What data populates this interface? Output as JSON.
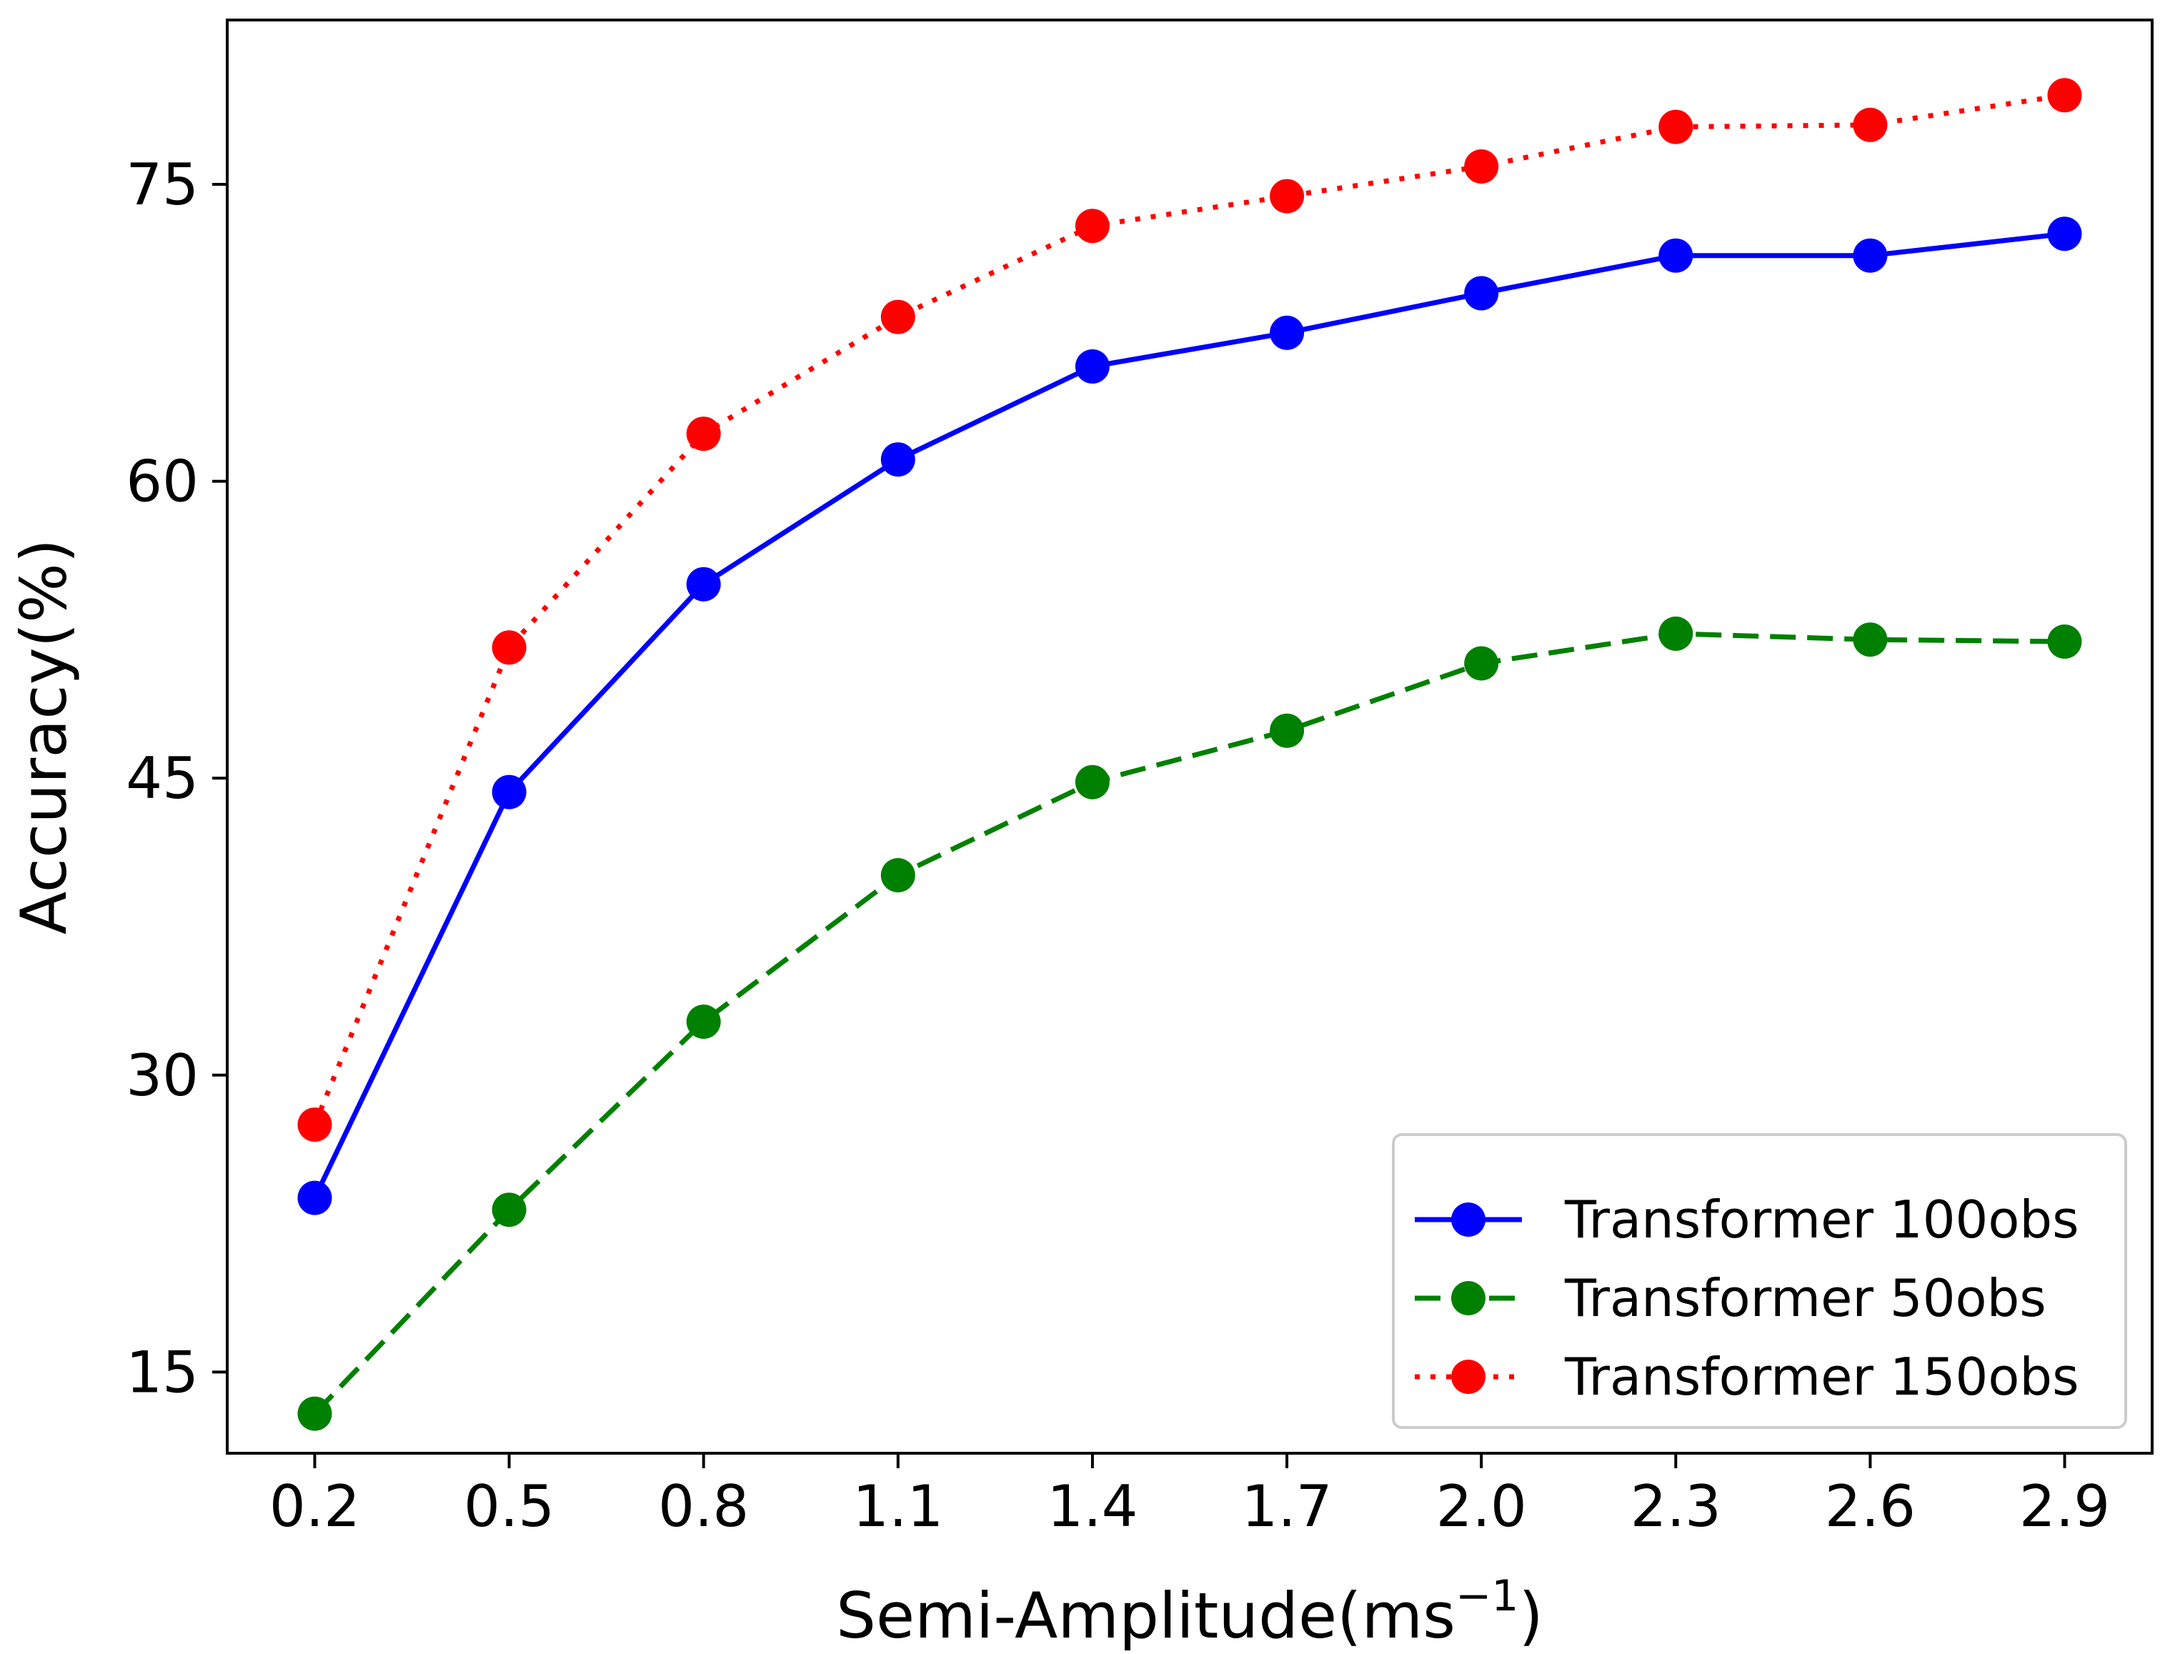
{
  "chart_data": {
    "type": "line",
    "title": "",
    "xlabel": "Semi-Amplitude(ms",
    "xlabel_superscript": "−1",
    "xlabel_suffix": ")",
    "ylabel": "Accuracy(%)",
    "x": [
      0.2,
      0.5,
      0.8,
      1.1,
      1.4,
      1.7,
      2.0,
      2.3,
      2.6,
      2.9
    ],
    "x_tick_labels": [
      "0.2",
      "0.5",
      "0.8",
      "1.1",
      "1.4",
      "1.7",
      "2.0",
      "2.3",
      "2.6",
      "2.9"
    ],
    "y_ticks": [
      15,
      30,
      45,
      60,
      75
    ],
    "y_tick_labels": [
      "15",
      "30",
      "45",
      "60",
      "75"
    ],
    "xlim": [
      0.065,
      3.035
    ],
    "ylim": [
      10.9,
      83.3
    ],
    "grid": false,
    "legend_position": "bottom-right",
    "series": [
      {
        "name": "Transformer 100obs",
        "color": "#0000ff",
        "linestyle": "solid",
        "marker": "circle",
        "values": [
          23.8,
          44.3,
          54.8,
          61.1,
          65.8,
          67.5,
          69.5,
          71.4,
          71.4,
          72.5
        ]
      },
      {
        "name": "Transformer 50obs",
        "color": "#008000",
        "linestyle": "dashed",
        "marker": "circle",
        "values": [
          12.9,
          23.2,
          32.7,
          40.1,
          44.8,
          47.4,
          50.8,
          52.3,
          52.0,
          51.9
        ]
      },
      {
        "name": "Transformer 150obs",
        "color": "#ff0000",
        "linestyle": "dotted",
        "marker": "circle",
        "values": [
          27.5,
          51.6,
          62.4,
          68.3,
          72.9,
          74.4,
          75.9,
          77.9,
          78.0,
          79.5
        ]
      }
    ]
  }
}
